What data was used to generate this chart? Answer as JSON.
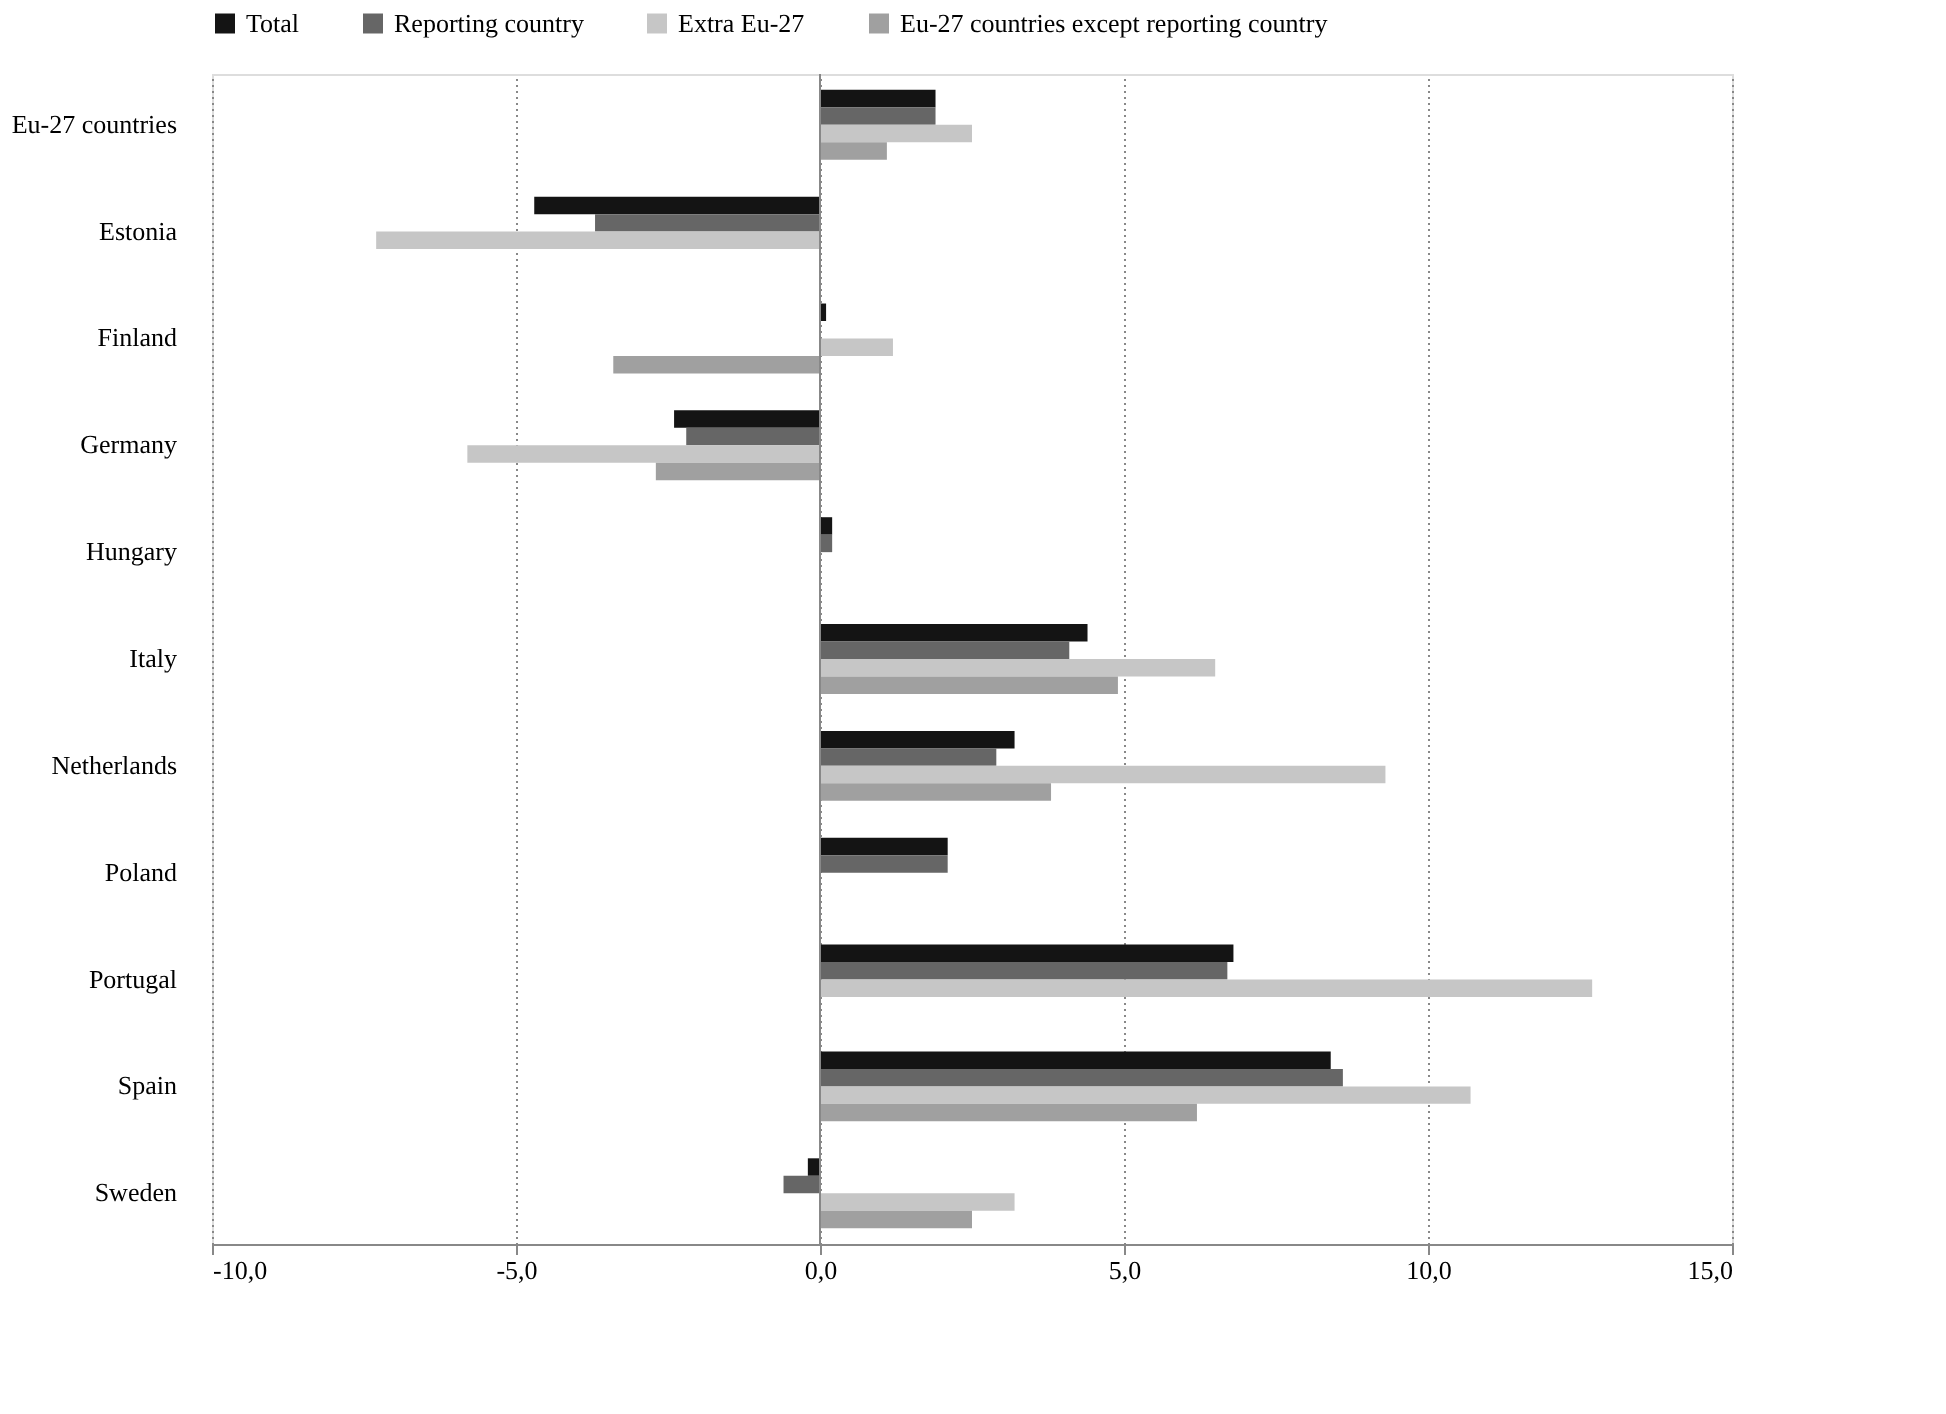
{
  "chart_data": {
    "type": "bar",
    "orientation": "horizontal",
    "categories": [
      "Eu-27 countries",
      "Estonia",
      "Finland",
      "Germany",
      "Hungary",
      "Italy",
      "Netherlands",
      "Poland",
      "Portugal",
      "Spain",
      "Sweden"
    ],
    "series": [
      {
        "name": "Total",
        "color": "#141414",
        "values": [
          1.9,
          -4.7,
          0.1,
          -2.4,
          0.2,
          4.4,
          3.2,
          2.1,
          6.8,
          8.4,
          -0.2
        ]
      },
      {
        "name": "Reporting country",
        "color": "#666666",
        "values": [
          1.9,
          -3.7,
          null,
          -2.2,
          0.2,
          4.1,
          2.9,
          2.1,
          6.7,
          8.6,
          -0.6
        ]
      },
      {
        "name": "Extra Eu-27",
        "color": "#c6c6c6",
        "values": [
          2.5,
          -7.3,
          1.2,
          -5.8,
          null,
          6.5,
          9.3,
          null,
          12.7,
          10.7,
          3.2
        ]
      },
      {
        "name": "Eu-27 countries except reporting country",
        "color": "#a0a0a0",
        "values": [
          1.1,
          null,
          -3.4,
          -2.7,
          null,
          4.9,
          3.8,
          null,
          null,
          6.2,
          2.5
        ]
      }
    ],
    "xlim": [
      -10,
      15
    ],
    "xticks": [
      {
        "value": -10,
        "label": "-10,0"
      },
      {
        "value": -5,
        "label": "-5,0"
      },
      {
        "value": 0,
        "label": "0,0"
      },
      {
        "value": 5,
        "label": "5,0"
      },
      {
        "value": 10,
        "label": "10,0"
      },
      {
        "value": 15,
        "label": "15,0"
      }
    ],
    "grid": "x",
    "legend": "top"
  }
}
